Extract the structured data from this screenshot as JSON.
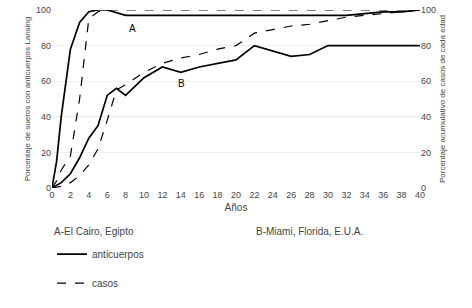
{
  "chart_data": {
    "type": "line",
    "x_label": "Años",
    "y_label": "Porcentaje de sueros con anticuerpos Lansing",
    "y2_label": "Porcentaje acumulativo de casos de cada edad",
    "xlim": [
      0,
      40
    ],
    "ylim": [
      0,
      100
    ],
    "y2lim": [
      0,
      100
    ],
    "xticks": [
      0,
      2,
      4,
      6,
      8,
      10,
      12,
      14,
      16,
      18,
      20,
      22,
      24,
      26,
      28,
      30,
      32,
      34,
      36,
      38,
      40
    ],
    "yticks": [
      0,
      20,
      40,
      60,
      80,
      100
    ],
    "y2ticks": [
      0,
      20,
      40,
      60,
      80,
      100
    ],
    "grid": true,
    "legend": "bottom",
    "captions": [
      "A-El Cairo, Egipto",
      "B-Miami, Florida, E.U.A."
    ],
    "annotations": [
      {
        "text": "A",
        "x": 8.2,
        "y": 94
      },
      {
        "text": "B",
        "x": 13.5,
        "y": 63
      }
    ],
    "series": [
      {
        "name": "anticuerpos",
        "color": "#000000",
        "line_style": "solid",
        "x": [
          0,
          0.5,
          1,
          2,
          3,
          4,
          5,
          6,
          8,
          10,
          12,
          14,
          16,
          18,
          20,
          22,
          24,
          26,
          28,
          30,
          32,
          34,
          36,
          38,
          40
        ],
        "values": [
          0,
          15,
          40,
          78,
          93,
          99,
          100,
          100,
          97,
          97,
          97,
          97,
          97,
          97,
          97,
          97,
          97,
          97,
          97,
          97,
          97,
          98,
          99,
          99,
          100
        ]
      },
      {
        "name": "casos",
        "color": "#000000",
        "line_style": "dashed",
        "x": [
          0,
          0.5,
          1,
          2,
          3,
          4,
          5,
          6,
          8,
          10,
          12,
          14,
          16,
          18,
          20,
          22,
          24,
          26,
          28,
          30,
          32,
          34,
          36,
          38,
          40
        ],
        "values": [
          0,
          4,
          10,
          18,
          50,
          95,
          99,
          100,
          100,
          100,
          100,
          100,
          100,
          100,
          100,
          100,
          100,
          100,
          100,
          100,
          100,
          100,
          100,
          100,
          100
        ]
      },
      {
        "name": "anticuerpos",
        "color": "#000000",
        "line_style": "solid",
        "x": [
          0,
          1,
          2,
          3,
          4,
          5,
          6,
          7,
          8,
          10,
          12,
          14,
          16,
          18,
          20,
          22,
          24,
          26,
          28,
          30,
          32,
          34,
          36,
          38,
          40
        ],
        "values": [
          0,
          3,
          8,
          17,
          28,
          35,
          52,
          56,
          52,
          62,
          68,
          65,
          68,
          70,
          72,
          80,
          77,
          74,
          75,
          80,
          80,
          80,
          80,
          80,
          80
        ]
      },
      {
        "name": "casos",
        "color": "#000000",
        "line_style": "dashed",
        "x": [
          0,
          1,
          2,
          3,
          4,
          5,
          6,
          7,
          8,
          10,
          12,
          14,
          16,
          18,
          20,
          22,
          24,
          26,
          28,
          30,
          32,
          34,
          36,
          38,
          40
        ],
        "values": [
          0,
          1,
          3,
          7,
          13,
          22,
          38,
          55,
          58,
          65,
          70,
          73,
          75,
          78,
          80,
          87,
          89,
          91,
          92,
          94,
          96,
          97,
          98,
          99,
          100
        ]
      }
    ]
  }
}
